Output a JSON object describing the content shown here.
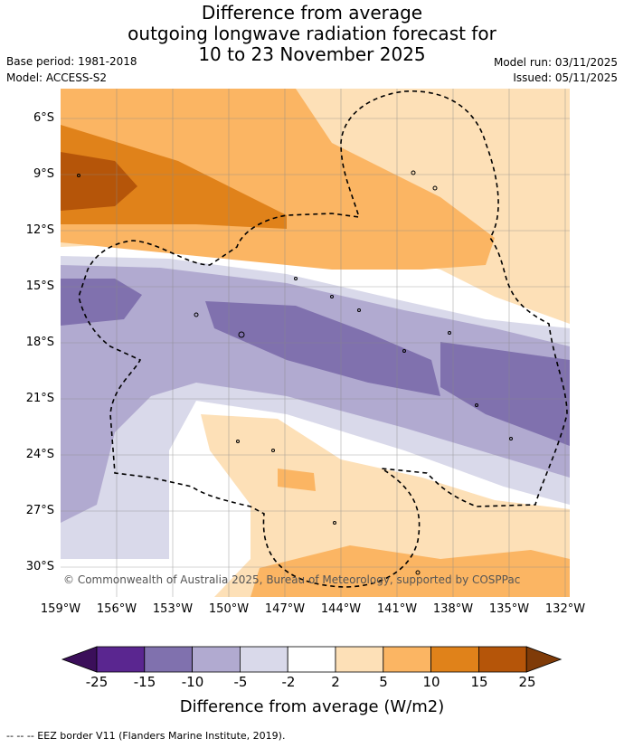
{
  "title": {
    "line1": "Difference from average",
    "line2": "outgoing longwave radiation forecast for",
    "line3": "10 to 23 November 2025"
  },
  "meta": {
    "base_period": "Base period: 1981-2018",
    "model": "Model: ACCESS-S2",
    "model_run": "Model run: 03/11/2025",
    "issued": "Issued: 05/11/2025"
  },
  "lat_labels": [
    "6°S",
    "9°S",
    "12°S",
    "15°S",
    "18°S",
    "21°S",
    "24°S",
    "27°S",
    "30°S"
  ],
  "lon_labels": [
    "159°W",
    "156°W",
    "153°W",
    "150°W",
    "147°W",
    "144°W",
    "141°W",
    "138°W",
    "135°W",
    "132°W"
  ],
  "copyright": "© Commonwealth of Australia 2025, Bureau of Meteorology, supported by COSPPac",
  "colorbar": {
    "ticks": [
      "-25",
      "-15",
      "-10",
      "-5",
      "-2",
      "2",
      "5",
      "10",
      "15",
      "25"
    ],
    "label": "Difference from average (W/m2)",
    "colors": {
      "under": "#3b0f5a",
      "bins": [
        "#5a2690",
        "#8071ae",
        "#b1aad0",
        "#d9d9ea",
        "#ffffff",
        "#fde0b7",
        "#fbb563",
        "#e0821a",
        "#b55509"
      ],
      "over": "#7f3b08"
    }
  },
  "footer": "--  --  -- EEZ border V11 (Flanders Marine Institute, 2019)."
}
